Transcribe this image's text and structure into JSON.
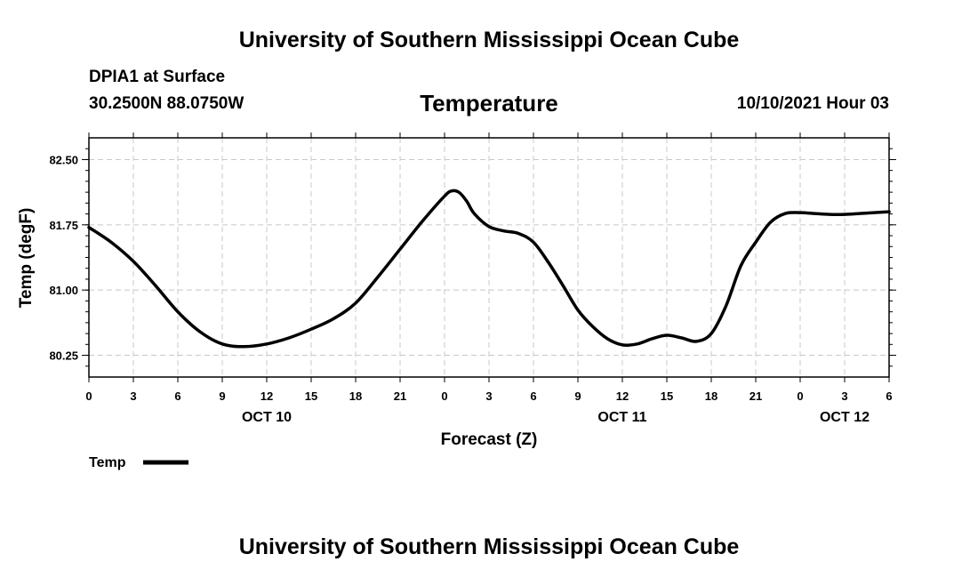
{
  "header": {
    "title": "University of Southern Mississippi Ocean Cube",
    "station": "DPIA1 at Surface",
    "coords": "30.2500N  88.0750W",
    "timestamp": "10/10/2021 Hour 03"
  },
  "footer": {
    "title": "University of Southern Mississippi Ocean Cube"
  },
  "colors": {
    "line": "#000000",
    "grid": "#c8c8c8",
    "background": "#ffffff"
  },
  "chart_data": {
    "type": "line",
    "title": "Temperature",
    "xlabel": "Forecast (Z)",
    "ylabel": "Temp (degF)",
    "xlim": [
      0,
      54
    ],
    "ylim": [
      80.0,
      82.75
    ],
    "yticks": [
      80.25,
      81.0,
      81.75,
      82.5
    ],
    "ytick_labels": [
      "80.25",
      "81.00",
      "81.75",
      "82.50"
    ],
    "xticks": [
      0,
      3,
      6,
      9,
      12,
      15,
      18,
      21,
      24,
      27,
      30,
      33,
      36,
      39,
      42,
      45,
      48,
      51,
      54
    ],
    "xtick_labels": [
      "0",
      "3",
      "6",
      "9",
      "12",
      "15",
      "18",
      "21",
      "0",
      "3",
      "6",
      "9",
      "12",
      "15",
      "18",
      "21",
      "0",
      "3",
      "6"
    ],
    "day_labels": [
      {
        "x": 12,
        "label": "OCT 10"
      },
      {
        "x": 36,
        "label": "OCT 11"
      },
      {
        "x": 51,
        "label": "OCT 12"
      }
    ],
    "grid": true,
    "legend": {
      "position": "bottom-left",
      "label": "Temp"
    },
    "series": [
      {
        "name": "Temp",
        "x": [
          0,
          1.5,
          3,
          4.5,
          6,
          7.5,
          9,
          10.5,
          12,
          13.5,
          15,
          16.5,
          18,
          19.5,
          21,
          22.5,
          24,
          24.5,
          25,
          25.5,
          26,
          27,
          28,
          29,
          30,
          31,
          32,
          33,
          34,
          35,
          36,
          37,
          38,
          39,
          40,
          41,
          42,
          43,
          44,
          45,
          46,
          47,
          48,
          49,
          50,
          51,
          52,
          53,
          54
        ],
        "y": [
          81.72,
          81.55,
          81.33,
          81.05,
          80.75,
          80.52,
          80.38,
          80.35,
          80.38,
          80.45,
          80.55,
          80.67,
          80.85,
          81.15,
          81.47,
          81.79,
          82.08,
          82.14,
          82.12,
          82.02,
          81.88,
          81.73,
          81.68,
          81.65,
          81.55,
          81.32,
          81.05,
          80.77,
          80.58,
          80.44,
          80.37,
          80.38,
          80.44,
          80.48,
          80.45,
          80.41,
          80.5,
          80.82,
          81.28,
          81.55,
          81.78,
          81.88,
          81.89,
          81.88,
          81.87,
          81.87,
          81.88,
          81.89,
          81.9
        ]
      }
    ]
  }
}
